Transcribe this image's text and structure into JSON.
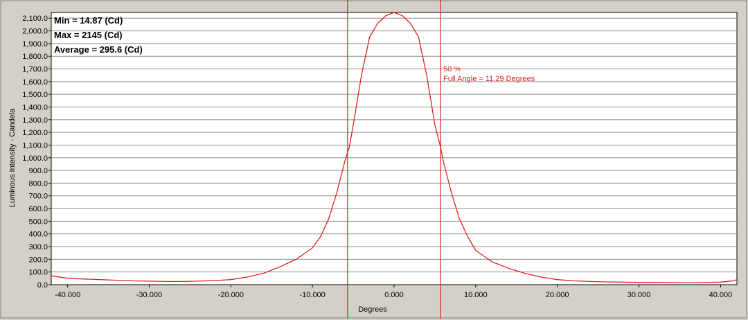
{
  "chart_data": {
    "type": "line",
    "xlabel": "Degrees",
    "ylabel": "Luminous Intensity - Candela",
    "xlim": [
      -42,
      42
    ],
    "ylim": [
      0,
      2145
    ],
    "x_ticks": [
      -40,
      -30,
      -20,
      -10,
      0,
      10,
      20,
      30,
      40
    ],
    "x_tick_labels": [
      "-40.000",
      "-30.000",
      "-20.000",
      "-10.000",
      "0.000",
      "10.000",
      "20.000",
      "30.000",
      "40.000"
    ],
    "y_ticks": [
      0,
      100,
      200,
      300,
      400,
      500,
      600,
      700,
      800,
      900,
      1000,
      1100,
      1200,
      1300,
      1400,
      1500,
      1600,
      1700,
      1800,
      1900,
      2000,
      2100
    ],
    "y_tick_labels": [
      "0.0",
      "100.0",
      "200.0",
      "300.0",
      "400.0",
      "500.0",
      "600.0",
      "700.0",
      "800.0",
      "900.0",
      "1,000.0",
      "1,100.0",
      "1,200.0",
      "1,300.0",
      "1,400.0",
      "1,500.0",
      "1,600.0",
      "1,700.0",
      "1,800.0",
      "1,900.0",
      "2,000.0",
      "2,100.0"
    ],
    "grid": true,
    "series": [
      {
        "color": "#e02020",
        "x": [
          -42,
          -40,
          -38,
          -36,
          -34,
          -32,
          -30,
          -28,
          -26,
          -24,
          -22,
          -20,
          -18,
          -16,
          -14,
          -12,
          -10,
          -9,
          -8,
          -7,
          -6,
          -5.5,
          -5,
          -4,
          -3,
          -2,
          -1,
          0,
          1,
          2,
          3,
          4,
          5,
          5.7,
          6,
          7,
          8,
          9,
          10,
          12,
          14,
          16,
          18,
          20,
          22,
          24,
          26,
          28,
          30,
          32,
          34,
          36,
          38,
          40,
          41.5,
          42
        ],
        "y": [
          70,
          50,
          45,
          40,
          35,
          30,
          28,
          25,
          25,
          28,
          32,
          40,
          60,
          90,
          140,
          200,
          290,
          380,
          520,
          730,
          980,
          1080,
          1260,
          1650,
          1950,
          2060,
          2120,
          2145,
          2120,
          2060,
          1950,
          1650,
          1260,
          1080,
          980,
          730,
          520,
          380,
          270,
          180,
          130,
          90,
          60,
          40,
          30,
          25,
          22,
          20,
          18,
          18,
          17,
          16,
          17,
          20,
          30,
          40
        ]
      }
    ],
    "markers": [
      {
        "x": -5.7,
        "color": "#e02020"
      },
      {
        "x": 5.7,
        "color": "#e02020"
      }
    ],
    "annotation": {
      "line1": "50 %",
      "line2": "Full Angle = 11.29 Degrees"
    },
    "stats": {
      "min": "Min = 14.87 (Cd)",
      "max": "Max = 2145 (Cd)",
      "average": "Average = 295.6 (Cd)"
    }
  }
}
